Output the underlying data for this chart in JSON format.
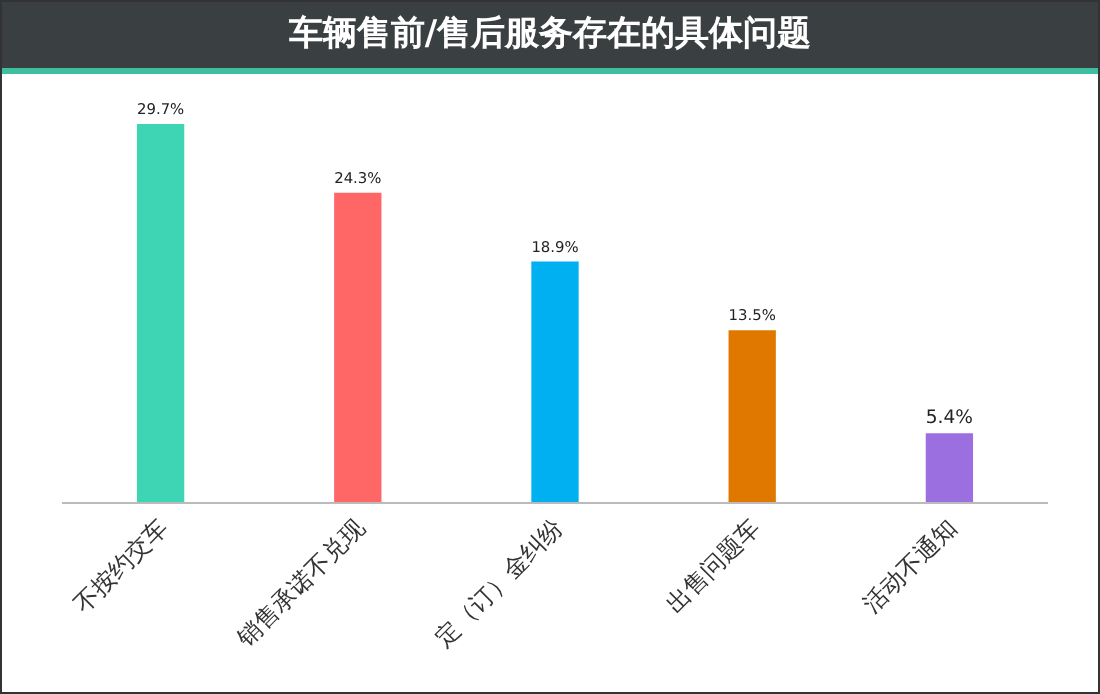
{
  "chart_data": {
    "type": "bar",
    "title": "车辆售前/售后服务存在的具体问题",
    "categories": [
      "不按约交车",
      "销售承诺不兑现",
      "定（订）金纠纷",
      "出售问题车",
      "活动不通知"
    ],
    "values": [
      29.7,
      24.3,
      18.9,
      13.5,
      5.4
    ],
    "colors": [
      "#3dd5b4",
      "#ff6666",
      "#00b0f0",
      "#e07800",
      "#9b6fe0"
    ],
    "value_labels": [
      "29.7%",
      "24.3%",
      "18.9%",
      "13.5%",
      "5.4%"
    ],
    "grid": false,
    "legend": false
  }
}
